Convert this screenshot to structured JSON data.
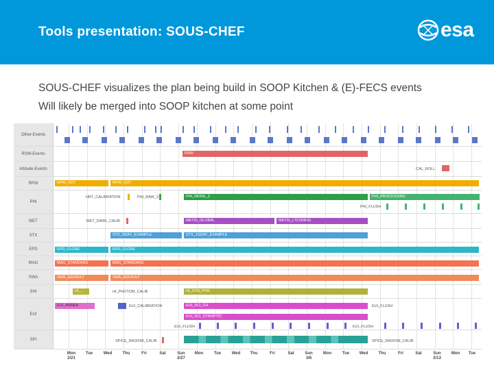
{
  "header": {
    "title": "Tools presentation: SOUS-CHEF",
    "logo_text": "esa",
    "bg_color": "#0098db"
  },
  "bullets": [
    "SOUS-CHEF visualizes the plan being build in SOOP Kitchen & (E)-FECS events",
    "Will likely be merged into SOOP kitchen at some point"
  ],
  "timeline": {
    "rows": [
      {
        "label": "Other-Events"
      },
      {
        "label": "RSW-Events"
      },
      {
        "label": "Attitude-Events"
      },
      {
        "label": "RPW"
      },
      {
        "label": "PHI"
      },
      {
        "label": "MET"
      },
      {
        "label": "STX"
      },
      {
        "label": "EPD"
      },
      {
        "label": "MAG"
      },
      {
        "label": "SWA"
      },
      {
        "label": "SHI"
      },
      {
        "label": "EUI"
      },
      {
        "label": "SPI"
      }
    ],
    "bars": [
      {
        "label": "RSW"
      },
      {
        "label": "CAL_ROLL"
      },
      {
        "label": "RPW_HOT"
      },
      {
        "label": "RPW_HOT"
      },
      {
        "label": "HRT_CALIBRATION"
      },
      {
        "label": "PHI_RAW_3"
      },
      {
        "label": "PHI_MODE_2"
      },
      {
        "label": "PHI_PROCESSING"
      },
      {
        "label": "PHI_FLUSH"
      },
      {
        "label": "MET_DARK_CALIB"
      },
      {
        "label": "METIS_GLOBAL"
      },
      {
        "label": "METIS_LTCONFIG"
      },
      {
        "label": "STX_SDAY_EXAMPLE"
      },
      {
        "label": "STX_1SDAY_EXAMPLE"
      },
      {
        "label": "EPD_CLOSE"
      },
      {
        "label": "EPD_CLOSE"
      },
      {
        "label": "MAG_STANDARD"
      },
      {
        "label": "MAG_STANDARD"
      },
      {
        "label": "SWA_DEFAULT"
      },
      {
        "label": "SWA_DEFAULT"
      },
      {
        "label": "HI_..."
      },
      {
        "label": "HI_PHOTOM_CALIB"
      },
      {
        "label": "HI_SYN_PRR"
      },
      {
        "label": "EUI_ANNEA"
      },
      {
        "label": "EUI_CALIBRATION"
      },
      {
        "label": "EUI_SCI_CH"
      },
      {
        "label": "EUI_FLUSH"
      },
      {
        "label": "EUI_SCI_SYNOPTIC"
      },
      {
        "label": "EUI_FLUSH"
      },
      {
        "label": "EUI_FLUSH"
      },
      {
        "label": "SPICE_RADIOM_CALIB"
      },
      {
        "label": "SPICE_RADIOM_CALIB"
      }
    ],
    "axis": [
      {
        "day": "Mon",
        "date": "2/21"
      },
      {
        "day": "Tue",
        "date": ""
      },
      {
        "day": "Wed",
        "date": ""
      },
      {
        "day": "Thu",
        "date": ""
      },
      {
        "day": "Fri",
        "date": ""
      },
      {
        "day": "Sat",
        "date": ""
      },
      {
        "day": "Sun",
        "date": "2/27"
      },
      {
        "day": "Mon",
        "date": ""
      },
      {
        "day": "Tue",
        "date": ""
      },
      {
        "day": "Wed",
        "date": ""
      },
      {
        "day": "Thu",
        "date": ""
      },
      {
        "day": "Fri",
        "date": ""
      },
      {
        "day": "Sat",
        "date": ""
      },
      {
        "day": "Sun",
        "date": "3/6"
      },
      {
        "day": "Mon",
        "date": ""
      },
      {
        "day": "Tue",
        "date": ""
      },
      {
        "day": "Wed",
        "date": ""
      },
      {
        "day": "Thu",
        "date": ""
      },
      {
        "day": "Fri",
        "date": ""
      },
      {
        "day": "Sat",
        "date": ""
      },
      {
        "day": "Sun",
        "date": "3/13"
      },
      {
        "day": "Mon",
        "date": ""
      },
      {
        "day": "Tue",
        "date": ""
      }
    ]
  }
}
